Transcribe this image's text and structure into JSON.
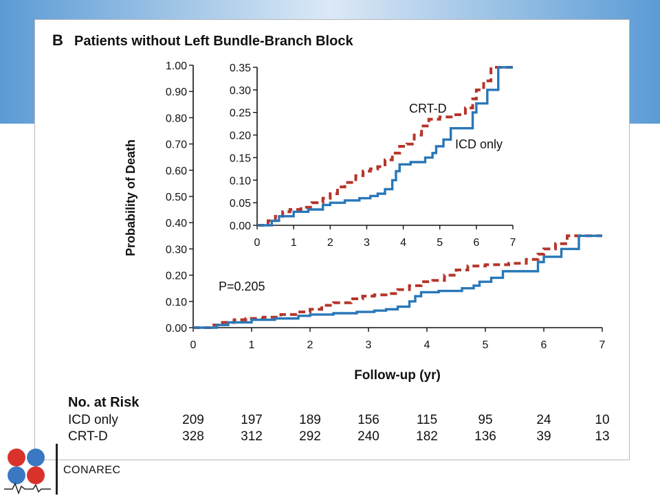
{
  "panel_letter": "B",
  "panel_title": "Patients without Left Bundle-Branch Block",
  "colors": {
    "crt": "#b5352b",
    "icd": "#2877b8",
    "band": "#5b9bd5"
  },
  "chart_data": [
    {
      "type": "line",
      "role": "main",
      "title": "Patients without Left Bundle-Branch Block",
      "xlabel": "Follow-up (yr)",
      "ylabel": "Probability of Death",
      "xlim": [
        0,
        7
      ],
      "ylim": [
        0,
        1.0
      ],
      "x_ticks": [
        "0",
        "1",
        "2",
        "3",
        "4",
        "5",
        "6",
        "7"
      ],
      "y_ticks": [
        "0.00",
        "0.10",
        "0.20",
        "0.30",
        "0.40",
        "0.50",
        "0.60",
        "0.70",
        "0.80",
        "0.90",
        "1.00"
      ],
      "annotation": "P=0.205",
      "step": true,
      "series": [
        {
          "name": "CRT-D",
          "style": "dashed",
          "x": [
            0,
            0.3,
            0.5,
            0.7,
            0.9,
            1.2,
            1.5,
            1.8,
            2.0,
            2.2,
            2.4,
            2.7,
            2.9,
            3.1,
            3.3,
            3.5,
            3.7,
            3.9,
            4.1,
            4.3,
            4.5,
            4.7,
            5.0,
            5.4,
            5.7,
            5.9,
            6.0,
            6.2,
            6.4,
            7.0
          ],
          "y": [
            0,
            0.01,
            0.02,
            0.03,
            0.035,
            0.04,
            0.05,
            0.06,
            0.07,
            0.085,
            0.095,
            0.11,
            0.12,
            0.125,
            0.13,
            0.145,
            0.16,
            0.175,
            0.18,
            0.2,
            0.22,
            0.235,
            0.24,
            0.245,
            0.26,
            0.28,
            0.3,
            0.32,
            0.35,
            0.35
          ]
        },
        {
          "name": "ICD only",
          "style": "solid",
          "x": [
            0,
            0.4,
            0.6,
            1.0,
            1.4,
            1.8,
            2.0,
            2.4,
            2.8,
            3.1,
            3.3,
            3.5,
            3.7,
            3.8,
            3.9,
            4.2,
            4.6,
            4.8,
            4.9,
            5.1,
            5.3,
            5.9,
            6.0,
            6.3,
            6.6,
            7.0
          ],
          "y": [
            0,
            0.01,
            0.02,
            0.03,
            0.035,
            0.045,
            0.05,
            0.055,
            0.06,
            0.065,
            0.07,
            0.08,
            0.1,
            0.12,
            0.135,
            0.14,
            0.15,
            0.16,
            0.175,
            0.19,
            0.215,
            0.25,
            0.27,
            0.3,
            0.35,
            0.35
          ]
        }
      ]
    },
    {
      "type": "line",
      "role": "inset",
      "xlim": [
        0,
        7
      ],
      "ylim": [
        0,
        0.35
      ],
      "x_ticks": [
        "0",
        "1",
        "2",
        "3",
        "4",
        "5",
        "6",
        "7"
      ],
      "y_ticks": [
        "0.00",
        "0.05",
        "0.10",
        "0.15",
        "0.20",
        "0.25",
        "0.30",
        "0.35"
      ],
      "series_labels": [
        "CRT-D",
        "ICD only"
      ],
      "step": true
    }
  ],
  "risk_table": {
    "title": "No. at Risk",
    "columns": [
      "0",
      "1",
      "2",
      "3",
      "4",
      "5",
      "6",
      "7"
    ],
    "rows": [
      {
        "label": "ICD only",
        "values": [
          "209",
          "197",
          "189",
          "156",
          "115",
          "95",
          "24",
          "10"
        ]
      },
      {
        "label": "CRT-D",
        "values": [
          "328",
          "312",
          "292",
          "240",
          "182",
          "136",
          "39",
          "13"
        ]
      }
    ]
  },
  "footer": {
    "org": "CONAREC",
    "logo_icon": "heart-clover-logo-icon"
  }
}
